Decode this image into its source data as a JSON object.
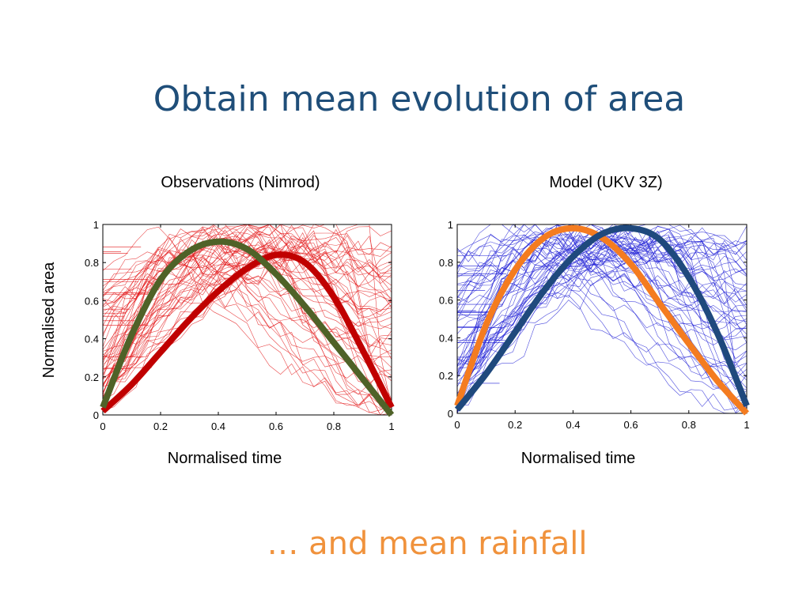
{
  "slide": {
    "title": "Obtain mean evolution of area",
    "footer": "… and mean rainfall"
  },
  "shared_ylabel": "Normalised area",
  "chart_data": [
    {
      "type": "line",
      "title": "Observations (Nimrod)",
      "xlabel": "Normalised time",
      "ylabel": "Normalised area",
      "xlim": [
        0,
        1
      ],
      "ylim": [
        0,
        1
      ],
      "x_ticks": [
        "0",
        "0.2",
        "0.4",
        "0.6",
        "0.8",
        "1"
      ],
      "y_ticks": [
        "0",
        "0.2",
        "0.4",
        "0.6",
        "0.8",
        "1"
      ],
      "grid": false,
      "background_traces_color": "#e41a1c",
      "series": [
        {
          "color": "#c00000",
          "x": [
            0,
            0.1,
            0.2,
            0.3,
            0.4,
            0.5,
            0.6,
            0.7,
            0.8,
            0.9,
            1.0
          ],
          "y": [
            0.02,
            0.16,
            0.33,
            0.5,
            0.65,
            0.77,
            0.84,
            0.8,
            0.62,
            0.34,
            0.04
          ]
        },
        {
          "color": "#4f6228",
          "x": [
            0,
            0.1,
            0.2,
            0.3,
            0.4,
            0.5,
            0.6,
            0.7,
            0.8,
            0.9,
            1.0
          ],
          "y": [
            0.04,
            0.42,
            0.71,
            0.86,
            0.91,
            0.87,
            0.74,
            0.57,
            0.38,
            0.19,
            0.0
          ]
        }
      ]
    },
    {
      "type": "line",
      "title": "Model (UKV 3Z)",
      "xlabel": "Normalised time",
      "ylabel": "",
      "xlim": [
        0,
        1
      ],
      "ylim": [
        0,
        1
      ],
      "x_ticks": [
        "0",
        "0.2",
        "0.4",
        "0.6",
        "0.8",
        "1"
      ],
      "y_ticks": [
        "0",
        "0.2",
        "0.4",
        "0.6",
        "0.8",
        "1"
      ],
      "grid": false,
      "background_traces_color": "#1f1fd6",
      "series": [
        {
          "color": "#f47c20",
          "x": [
            0,
            0.1,
            0.2,
            0.3,
            0.4,
            0.5,
            0.6,
            0.7,
            0.8,
            0.9,
            1.0
          ],
          "y": [
            0.04,
            0.47,
            0.76,
            0.93,
            0.98,
            0.93,
            0.79,
            0.58,
            0.37,
            0.17,
            0.0
          ]
        },
        {
          "color": "#1f497d",
          "x": [
            0,
            0.1,
            0.2,
            0.3,
            0.4,
            0.5,
            0.6,
            0.7,
            0.8,
            0.9,
            1.0
          ],
          "y": [
            0.02,
            0.21,
            0.43,
            0.65,
            0.83,
            0.95,
            0.98,
            0.92,
            0.72,
            0.42,
            0.04
          ]
        }
      ]
    }
  ]
}
